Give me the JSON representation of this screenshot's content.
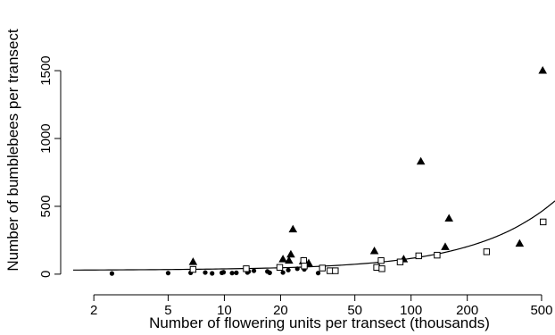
{
  "chart_data": {
    "type": "scatter",
    "title": "",
    "xlabel": "Number of flowering units per transect (thousands)",
    "ylabel": "Number of bumblebees per transect",
    "x_scale": "log",
    "xlim": [
      1.55,
      590
    ],
    "ylim": [
      -60,
      1560
    ],
    "x_ticks": [
      2,
      5,
      10,
      20,
      50,
      100,
      200,
      500
    ],
    "x_tick_labels": [
      "2",
      "5",
      "10",
      "20",
      "50",
      "100",
      "200",
      "500"
    ],
    "y_ticks": [
      0,
      500,
      1000,
      1500
    ],
    "y_tick_labels": [
      "0",
      "500",
      "1000",
      "1500"
    ],
    "grid": false,
    "legend": "none",
    "series": [
      {
        "marker": "circle-filled",
        "points": [
          [
            2.5,
            5
          ],
          [
            5.0,
            8
          ],
          [
            6.6,
            10
          ],
          [
            7.9,
            12
          ],
          [
            8.6,
            6
          ],
          [
            9.7,
            10
          ],
          [
            9.9,
            14
          ],
          [
            11.0,
            8
          ],
          [
            11.6,
            10
          ],
          [
            13.3,
            12
          ],
          [
            13.5,
            20
          ],
          [
            14.4,
            25
          ],
          [
            17.0,
            20
          ],
          [
            17.5,
            10
          ],
          [
            20.6,
            12
          ],
          [
            22.0,
            30
          ],
          [
            24.6,
            40
          ],
          [
            26.8,
            35
          ],
          [
            31.8,
            8
          ]
        ]
      },
      {
        "marker": "triangle-filled",
        "points": [
          [
            6.8,
            90
          ],
          [
            20.6,
            110
          ],
          [
            22.2,
            100
          ],
          [
            22.7,
            145
          ],
          [
            23.3,
            330
          ],
          [
            26.4,
            95
          ],
          [
            28.3,
            80
          ],
          [
            63.6,
            170
          ],
          [
            91.3,
            110
          ],
          [
            112.8,
            830
          ],
          [
            152.4,
            200
          ],
          [
            159.6,
            410
          ],
          [
            381.4,
            225
          ],
          [
            506.9,
            1500
          ]
        ]
      },
      {
        "marker": "square-open",
        "points": [
          [
            6.8,
            35
          ],
          [
            13.1,
            40
          ],
          [
            19.8,
            50
          ],
          [
            26.6,
            100
          ],
          [
            26.8,
            60
          ],
          [
            33.5,
            45
          ],
          [
            36.8,
            25
          ],
          [
            39.3,
            25
          ],
          [
            65.4,
            50
          ],
          [
            69.1,
            100
          ],
          [
            69.8,
            40
          ],
          [
            87.4,
            90
          ],
          [
            109.9,
            135
          ],
          [
            137.9,
            140
          ],
          [
            253.9,
            165
          ],
          [
            509.9,
            385
          ]
        ]
      }
    ],
    "fit_curve": {
      "type": "line",
      "x": [
        1.55,
        3,
        6,
        10,
        20,
        50,
        100,
        150,
        200,
        250,
        300,
        350,
        400,
        450,
        500,
        550,
        590
      ],
      "y": [
        30,
        32,
        35,
        39,
        47,
        73,
        116,
        159,
        203,
        246,
        289,
        332,
        376,
        419,
        462,
        506,
        540
      ],
      "y_growth": "exponential",
      "y_values_note_excluded": true
    }
  }
}
